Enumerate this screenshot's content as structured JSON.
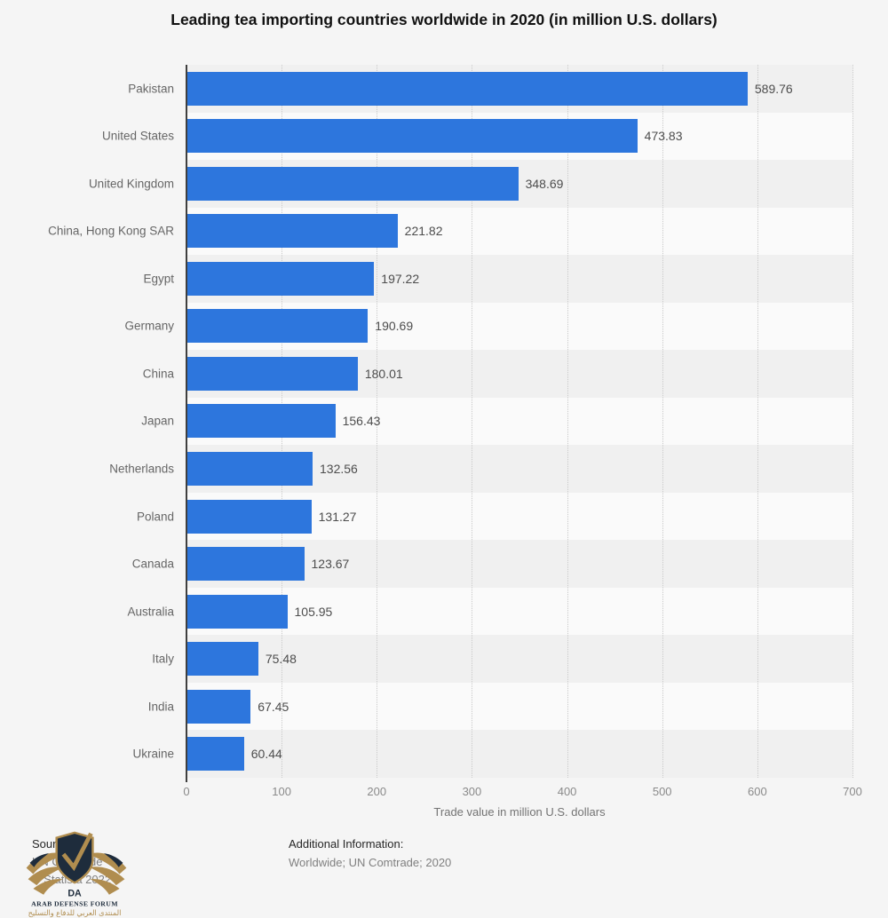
{
  "title": "Leading tea importing countries worldwide in 2020 (in million U.S. dollars)",
  "chart_data": {
    "type": "bar",
    "orientation": "horizontal",
    "title": "Leading tea importing countries worldwide in 2020 (in million U.S. dollars)",
    "categories": [
      "Pakistan",
      "United States",
      "United Kingdom",
      "China, Hong Kong SAR",
      "Egypt",
      "Germany",
      "China",
      "Japan",
      "Netherlands",
      "Poland",
      "Canada",
      "Australia",
      "Italy",
      "India",
      "Ukraine"
    ],
    "values": [
      589.76,
      473.83,
      348.69,
      221.82,
      197.22,
      190.69,
      180.01,
      156.43,
      132.56,
      131.27,
      123.67,
      105.95,
      75.48,
      67.45,
      60.44
    ],
    "xlabel": "Trade value in million U.S. dollars",
    "xlim": [
      0,
      700
    ],
    "xticks": [
      0,
      100,
      200,
      300,
      400,
      500,
      600,
      700
    ],
    "grid": "vertical dotted gridlines at each 100",
    "legend": "none",
    "bar_color": "#2d76dd"
  },
  "footer": {
    "source_label": "Source",
    "source_name": "UN Comtrade",
    "copyright": "© Statista 2022",
    "additional_info_label": "Additional Information:",
    "additional_info": "Worldwide; UN Comtrade; 2020"
  },
  "watermark": {
    "monogram": "DA",
    "name_en": "ARAB DEFENSE FORUM",
    "name_ar": "المنتدى العربي للدفاع والتسليح"
  },
  "colors": {
    "background": "#f5f5f5",
    "band_dark": "#f0f0f0",
    "band_light": "#fafafa",
    "bar": "#2d76dd",
    "axis_line": "#3f3f3f",
    "gridline": "#c9c9c9",
    "category_label": "#666666",
    "value_label": "#4d4d4d",
    "tick_label": "#8a8a8a",
    "watermark_navy": "#1e2c3c",
    "watermark_gold": "#b08d4f"
  }
}
